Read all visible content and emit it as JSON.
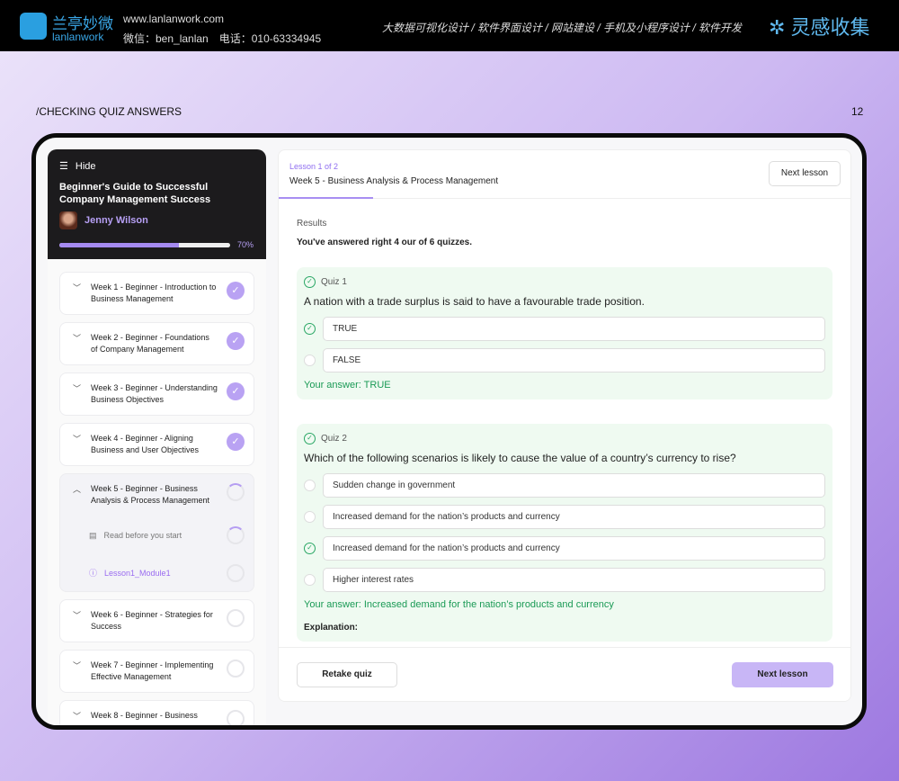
{
  "banner": {
    "logo_cn": "兰亭妙微",
    "logo_en": "lanlanwork",
    "site": "www.lanlanwork.com",
    "contact": "微信：ben_lanlan　电话：010-63334945",
    "services": "大数据可视化设计 / 软件界面设计 / 网站建设 / 手机及小程序设计 / 软件开发",
    "brand": "灵感收集"
  },
  "slide": {
    "title": "/CHECKING QUIZ ANSWERS",
    "page": "12"
  },
  "sidebar": {
    "hide": "Hide",
    "course": "Beginner's Guide to Successful Company Management Success",
    "author": "Jenny Wilson",
    "progress_label": "70%",
    "progress": 0.7,
    "weeks": [
      {
        "title": "Week 1 - Beginner - Introduction to Business Management",
        "status": "done"
      },
      {
        "title": "Week 2 - Beginner - Foundations of Company Management",
        "status": "done"
      },
      {
        "title": "Week 3 - Beginner - Understanding Business Objectives",
        "status": "done"
      },
      {
        "title": "Week 4 - Beginner - Aligning Business and User Objectives",
        "status": "done"
      },
      {
        "title": "Week 5 - Beginner - Business Analysis & Process Management",
        "status": "in-progress",
        "items": [
          {
            "label": "Read before you start"
          },
          {
            "label": "Lesson1_Module1"
          }
        ]
      },
      {
        "title": "Week 6 - Beginner - Strategies for Success",
        "status": "todo"
      },
      {
        "title": "Week 7 - Beginner - Implementing Effective Management",
        "status": "todo"
      },
      {
        "title": "Week 8 - Beginner - Business",
        "status": "todo"
      }
    ]
  },
  "main": {
    "lesson": "Lesson 1 of 2",
    "title": "Week 5 - Business Analysis & Process Management",
    "next_top": "Next lesson",
    "results": "Results",
    "summary": "You've answered right 4 our of 6 quizzes.",
    "quizzes": [
      {
        "label": "Quiz 1",
        "question": "A nation with a trade surplus is said to have a favourable trade position.",
        "options": [
          "TRUE",
          "FALSE"
        ],
        "selected": 0,
        "answer": "Your answer: TRUE"
      },
      {
        "label": "Quiz 2",
        "question": "Which of the following scenarios is likely to cause the value of a country’s currency to rise?",
        "options": [
          "Sudden change in government",
          "Increased demand for the nation’s products and currency",
          "Increased demand for the nation’s products and currency",
          "Higher interest rates"
        ],
        "selected": 2,
        "answer": "Your answer: Increased demand for the nation’s products and currency",
        "explanation": "Explanation:"
      }
    ],
    "retake": "Retake quiz",
    "next_bottom": "Next lesson"
  },
  "colors": {
    "accent": "#a88ef2",
    "correct": "#1a9a55"
  }
}
